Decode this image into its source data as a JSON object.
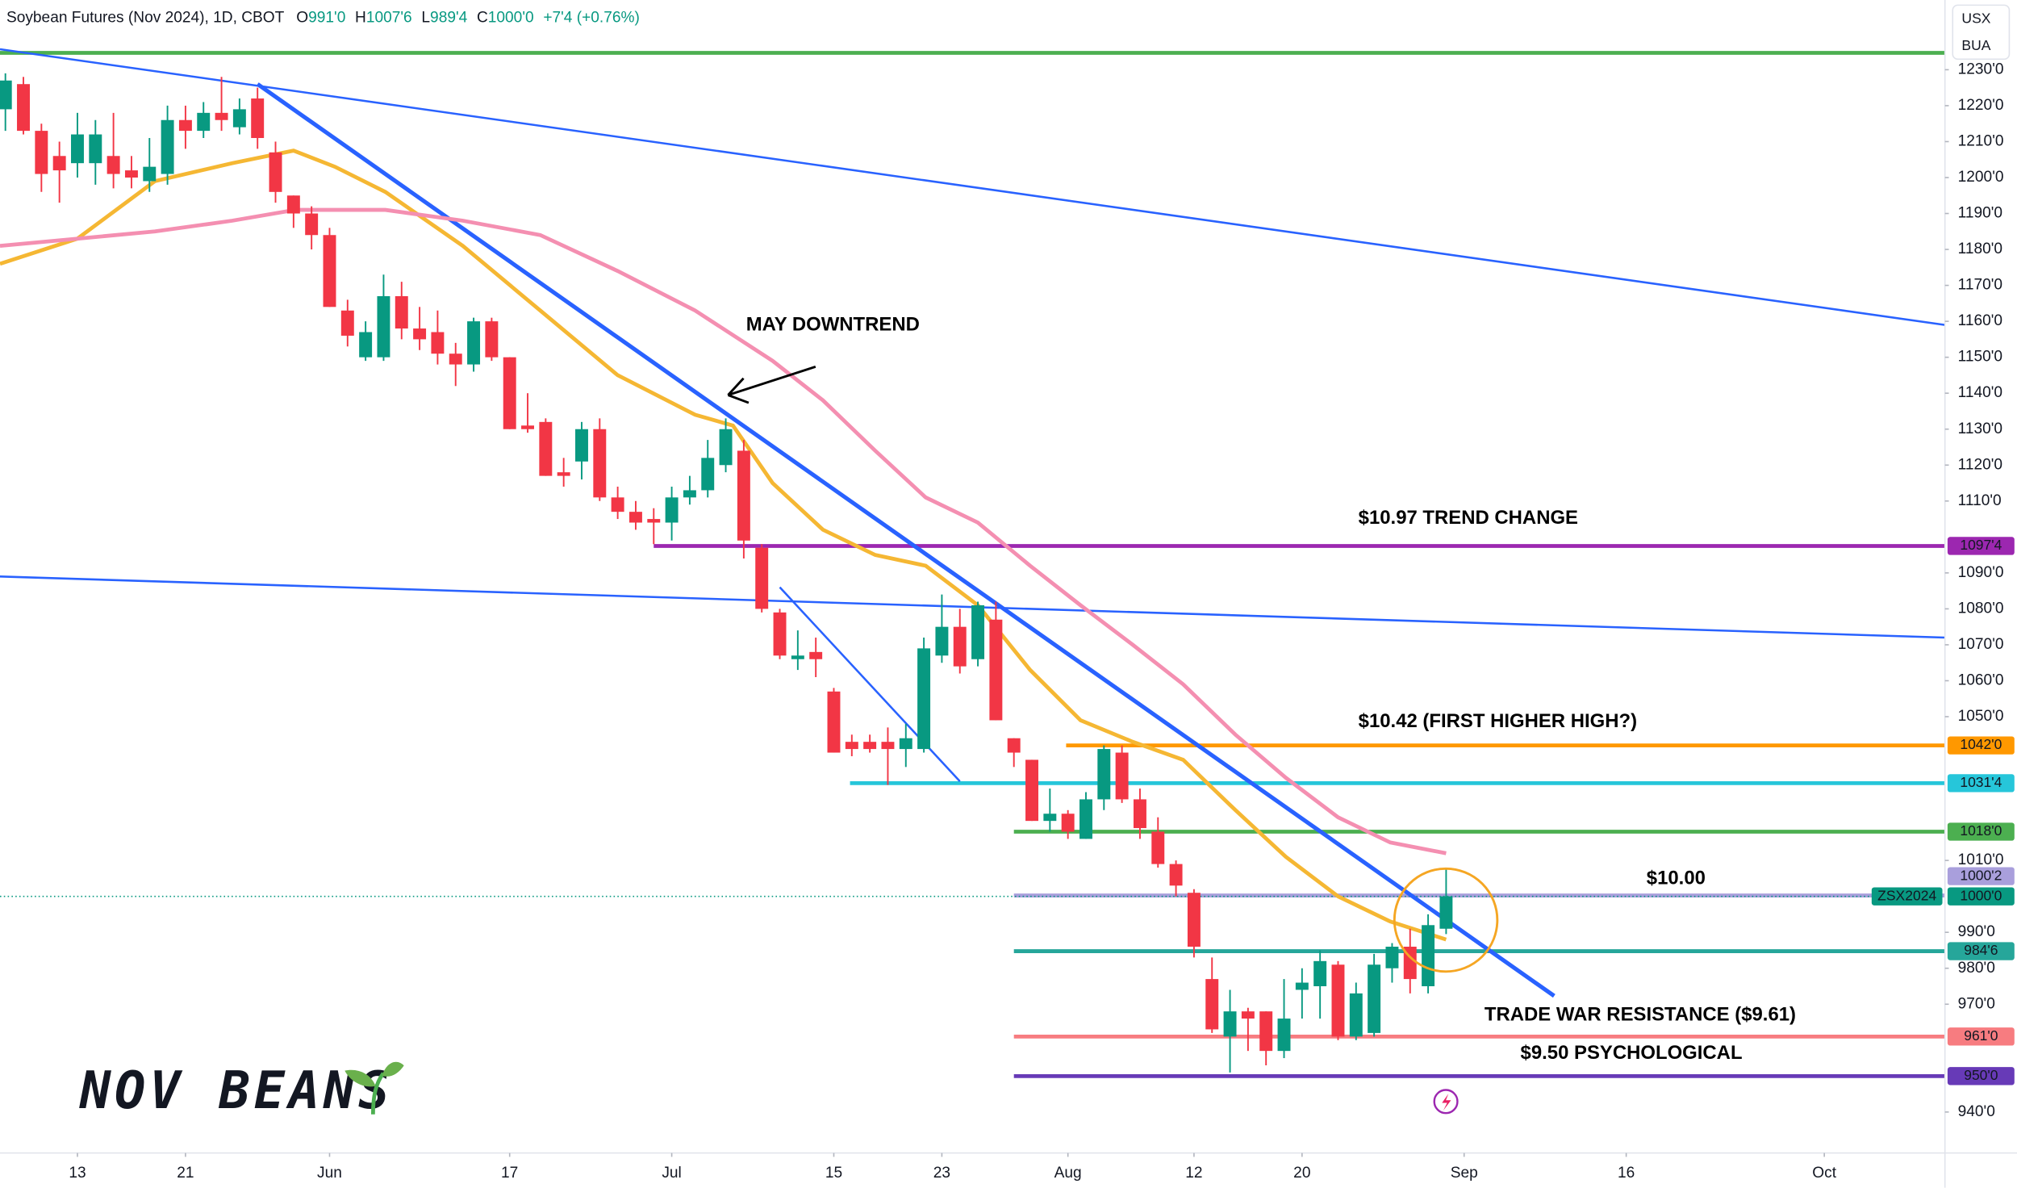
{
  "chart_data": {
    "type": "candlestick",
    "header": {
      "title": "Soybean Futures (Nov 2024), 1D, CBOT",
      "ohlc": [
        {
          "key": "O",
          "value": "991'0"
        },
        {
          "key": "H",
          "value": "1007'6"
        },
        {
          "key": "L",
          "value": "989'4"
        },
        {
          "key": "C",
          "value": "1000'0"
        }
      ],
      "change": "+7'4 (+0.76%)",
      "units": [
        "USX",
        "BUA"
      ]
    },
    "x": [
      0,
      1,
      2,
      3,
      4,
      5,
      6,
      7,
      8,
      9,
      10,
      11,
      12,
      13,
      14,
      15,
      16,
      17,
      18,
      19,
      20,
      21,
      22,
      23,
      24,
      25,
      26,
      27,
      28,
      29,
      30,
      31,
      32,
      33,
      34,
      35,
      36,
      37,
      38,
      39,
      40,
      41,
      42,
      43,
      44,
      45,
      46,
      47,
      48,
      49,
      50,
      51,
      52,
      53,
      54,
      55,
      56,
      57,
      58,
      59,
      60,
      61,
      62,
      63,
      64,
      65,
      66,
      67,
      68,
      69,
      70,
      71,
      72,
      73,
      74,
      75,
      76,
      77,
      78,
      79,
      80
    ],
    "open": [
      1219,
      1226,
      1213,
      1206,
      1204,
      1204,
      1206,
      1202,
      1199,
      1201,
      1216,
      1213,
      1218,
      1214,
      1222,
      1207,
      1195,
      1190,
      1184,
      1163,
      1150,
      1150,
      1167,
      1158,
      1157,
      1151,
      1148,
      1160,
      1150,
      1131,
      1132,
      1118,
      1121,
      1130,
      1111,
      1107,
      1105,
      1104,
      1111,
      1113,
      1120,
      1124,
      1097,
      1079,
      1066,
      1068,
      1057,
      1043,
      1043,
      1043,
      1041,
      1041,
      1067,
      1075,
      1066,
      1077,
      1044,
      1038,
      1021,
      1023,
      1016,
      1027,
      1040,
      1027,
      1018,
      1009,
      1001,
      977,
      961,
      968,
      968,
      957,
      974,
      975,
      981,
      961,
      962,
      980,
      986,
      975,
      991
    ],
    "high": [
      1229,
      1228,
      1215,
      1210,
      1218,
      1216,
      1218,
      1206,
      1211,
      1220,
      1220,
      1221,
      1228,
      1222,
      1225,
      1210,
      1195,
      1192,
      1186,
      1166,
      1160,
      1173,
      1171,
      1164,
      1163,
      1154,
      1161,
      1161,
      1150,
      1140,
      1133,
      1122,
      1132,
      1133,
      1114,
      1110,
      1108,
      1114,
      1117,
      1127,
      1133,
      1127,
      1098,
      1080,
      1074,
      1072,
      1058,
      1045,
      1045,
      1047,
      1048,
      1072,
      1084,
      1080,
      1082,
      1082,
      1044,
      1038,
      1030,
      1024,
      1029,
      1042,
      1042,
      1030,
      1022,
      1010,
      1002,
      983,
      974,
      969,
      968,
      977,
      980,
      985,
      982,
      976,
      984,
      987,
      991,
      995,
      1007.75
    ],
    "low": [
      1213,
      1212,
      1196,
      1193,
      1200,
      1198,
      1197,
      1197,
      1196,
      1198,
      1208,
      1211,
      1213,
      1212,
      1208,
      1193,
      1186,
      1180,
      1164,
      1153,
      1149,
      1149,
      1155,
      1152,
      1148,
      1142,
      1146,
      1149,
      1130,
      1129,
      1117,
      1114,
      1116,
      1110,
      1105,
      1102,
      1098,
      1099,
      1109,
      1111,
      1118,
      1094,
      1079,
      1066,
      1063,
      1061,
      1040,
      1039,
      1040,
      1031,
      1036,
      1040,
      1065,
      1062,
      1064,
      1049,
      1036,
      1021,
      1018,
      1016,
      1016,
      1024,
      1026,
      1016,
      1008,
      1000,
      983,
      962,
      951,
      957,
      953,
      955,
      966,
      966,
      960,
      960,
      961,
      976,
      973,
      973,
      989.5
    ],
    "close": [
      1227,
      1213,
      1201,
      1202,
      1212,
      1212,
      1201,
      1200,
      1203,
      1216,
      1213,
      1218,
      1216,
      1219,
      1211,
      1196,
      1190,
      1184,
      1164,
      1156,
      1157,
      1167,
      1158,
      1155,
      1151,
      1148,
      1160,
      1150,
      1130,
      1130,
      1117,
      1117,
      1130,
      1111,
      1107,
      1104,
      1104,
      1111,
      1113,
      1122,
      1130,
      1099,
      1080,
      1067,
      1067,
      1066,
      1040,
      1041,
      1041,
      1041,
      1044,
      1069,
      1075,
      1064,
      1081,
      1049,
      1040,
      1021,
      1023,
      1018,
      1027,
      1041,
      1027,
      1019,
      1009,
      1003,
      986,
      963,
      968,
      966,
      957,
      966,
      976,
      982,
      961,
      973,
      981,
      986,
      977,
      992,
      1000
    ],
    "up_color": "#089981",
    "down_color": "#f23645",
    "moving_averages": [
      {
        "color": "#f5b733",
        "x": [
          -0.3,
          4,
          8.3,
          12.6,
          16,
          18.3,
          21.1,
          25.4,
          29.7,
          34,
          38.3,
          40.4,
          42.6,
          45.4,
          48.3,
          51.1,
          54,
          56.9,
          59.7,
          62.6,
          65.4,
          68.3,
          71.1,
          74,
          76.9,
          80
        ],
        "values": [
          1176,
          1183,
          1199,
          1204,
          1207.5,
          1203,
          1196,
          1181,
          1163,
          1145,
          1134,
          1131,
          1115,
          1102,
          1095,
          1092,
          1081,
          1063,
          1049,
          1043,
          1038,
          1024,
          1011,
          1000,
          993,
          988
        ]
      },
      {
        "color": "#f48fb1",
        "x": [
          -0.3,
          4,
          8.3,
          12.6,
          16.1,
          21.1,
          25.4,
          29.7,
          34,
          38.3,
          42.6,
          45.4,
          48.3,
          51.1,
          54,
          56.9,
          59.7,
          62.6,
          65.4,
          68.3,
          71.1,
          74,
          76.9,
          80
        ],
        "values": [
          1181,
          1183,
          1185,
          1188,
          1191,
          1191,
          1188,
          1184,
          1174,
          1163,
          1149,
          1138,
          1124,
          1111,
          1104,
          1092,
          1081,
          1070,
          1059,
          1045,
          1033,
          1022,
          1015,
          1012
        ]
      }
    ],
    "trendlines": [
      {
        "color": "#2962ff",
        "width": 1.6,
        "x": [
          -0.3,
          107.7
        ],
        "y": [
          1235.7,
          1159
        ]
      },
      {
        "color": "#2962ff",
        "width": 3.2,
        "x": [
          14,
          86
        ],
        "y": [
          1226,
          972.3
        ]
      },
      {
        "color": "#2962ff",
        "width": 1.6,
        "x": [
          -0.3,
          107.7
        ],
        "y": [
          1089,
          1072
        ]
      },
      {
        "color": "#2962ff",
        "width": 1.6,
        "x": [
          43,
          53
        ],
        "y": [
          1086,
          1032
        ]
      }
    ],
    "levels": [
      {
        "value": 1234.7,
        "color": "#4caf50",
        "from": -0.3
      },
      {
        "value": 1097.5,
        "label": "1097'4",
        "color": "#9c27b0",
        "from": 36
      },
      {
        "value": 1042,
        "label": "1042'0",
        "color": "#ff9800",
        "from": 58.9
      },
      {
        "value": 1031.5,
        "label": "1031'4",
        "color": "#26c6da",
        "from": 46.9
      },
      {
        "value": 1018,
        "label": "1018'0",
        "color": "#4caf50",
        "from": 56
      },
      {
        "value": 1000.25,
        "label": "1000'2",
        "color": "#a99fdc",
        "from": 56
      },
      {
        "value": 984.75,
        "label": "984'6",
        "color": "#26a69a",
        "from": 56
      },
      {
        "value": 961,
        "label": "961'0",
        "color": "#f77c80",
        "from": 56
      },
      {
        "value": 950,
        "label": "950'0",
        "color": "#673ab7",
        "from": 56
      }
    ],
    "last": {
      "value": 1000,
      "label": "1000'0",
      "symbol": "ZSX2024",
      "color": "#089981"
    },
    "annotations": [
      "MAY DOWNTREND",
      "$10.97 TREND CHANGE",
      "$10.42 (FIRST HIGHER HIGH?)",
      "$10.00",
      "TRADE WAR RESISTANCE ($9.61)",
      "$9.50 PSYCHOLOGICAL",
      "NOV BEANS"
    ],
    "xlim": [
      -0.3,
      107.7
    ],
    "ylim": [
      928.6,
      1249.4
    ],
    "xticks": [
      {
        "value": 4,
        "label": "13"
      },
      {
        "value": 10,
        "label": "21"
      },
      {
        "value": 18,
        "label": "Jun"
      },
      {
        "value": 28,
        "label": "17"
      },
      {
        "value": 37,
        "label": "Jul"
      },
      {
        "value": 46,
        "label": "15"
      },
      {
        "value": 52,
        "label": "23"
      },
      {
        "value": 59,
        "label": "Aug"
      },
      {
        "value": 66,
        "label": "12"
      },
      {
        "value": 72,
        "label": "20"
      },
      {
        "value": 81,
        "label": "Sep"
      },
      {
        "value": 90,
        "label": "16"
      },
      {
        "value": 101,
        "label": "Oct"
      }
    ],
    "yticks": [
      {
        "value": 1230,
        "label": "1230'0"
      },
      {
        "value": 1220,
        "label": "1220'0"
      },
      {
        "value": 1210,
        "label": "1210'0"
      },
      {
        "value": 1200,
        "label": "1200'0"
      },
      {
        "value": 1190,
        "label": "1190'0"
      },
      {
        "value": 1180,
        "label": "1180'0"
      },
      {
        "value": 1170,
        "label": "1170'0"
      },
      {
        "value": 1160,
        "label": "1160'0"
      },
      {
        "value": 1150,
        "label": "1150'0"
      },
      {
        "value": 1140,
        "label": "1140'0"
      },
      {
        "value": 1130,
        "label": "1130'0"
      },
      {
        "value": 1120,
        "label": "1120'0"
      },
      {
        "value": 1110,
        "label": "1110'0"
      },
      {
        "value": 1090,
        "label": "1090'0"
      },
      {
        "value": 1080,
        "label": "1080'0"
      },
      {
        "value": 1070,
        "label": "1070'0"
      },
      {
        "value": 1060,
        "label": "1060'0"
      },
      {
        "value": 1050,
        "label": "1050'0"
      },
      {
        "value": 1010,
        "label": "1010'0"
      },
      {
        "value": 990,
        "label": "990'0"
      },
      {
        "value": 980,
        "label": "980'0"
      },
      {
        "value": 970,
        "label": "970'0"
      },
      {
        "value": 940,
        "label": "940'0"
      }
    ]
  }
}
